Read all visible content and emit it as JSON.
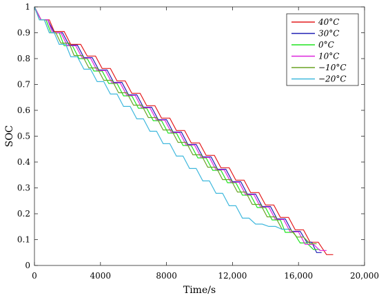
{
  "chart_data": {
    "type": "line",
    "xlabel": "Time/s",
    "ylabel": "SOC",
    "xlim": [
      0,
      20000
    ],
    "ylim": [
      0,
      1
    ],
    "x_ticks": [
      0,
      4000,
      8000,
      12000,
      16000,
      20000
    ],
    "x_tick_labels": [
      "0",
      "4000",
      "8000",
      "12,000",
      "16,000",
      "20,000"
    ],
    "y_ticks": [
      0,
      0.1,
      0.2,
      0.3,
      0.4,
      0.5,
      0.6,
      0.7,
      0.8,
      0.9,
      1
    ],
    "y_tick_labels": [
      "0",
      "0.1",
      "0.2",
      "0.3",
      "0.4",
      "0.5",
      "0.6",
      "0.7",
      "0.8",
      "0.9",
      "1"
    ],
    "grid": false,
    "legend": "top-right",
    "series": [
      {
        "name": "40°C",
        "color": "#e41a1c",
        "points": [
          [
            0,
            1
          ],
          [
            400,
            0.95
          ],
          [
            900,
            0.95
          ],
          [
            1200,
            0.905
          ],
          [
            1800,
            0.905
          ],
          [
            2200,
            0.855
          ],
          [
            2800,
            0.855
          ],
          [
            3200,
            0.81
          ],
          [
            3700,
            0.81
          ],
          [
            4100,
            0.762
          ],
          [
            4600,
            0.762
          ],
          [
            5000,
            0.714
          ],
          [
            5500,
            0.714
          ],
          [
            5900,
            0.666
          ],
          [
            6400,
            0.666
          ],
          [
            6800,
            0.618
          ],
          [
            7300,
            0.618
          ],
          [
            7700,
            0.57
          ],
          [
            8200,
            0.57
          ],
          [
            8600,
            0.522
          ],
          [
            9100,
            0.522
          ],
          [
            9500,
            0.474
          ],
          [
            10000,
            0.474
          ],
          [
            10400,
            0.426
          ],
          [
            10900,
            0.426
          ],
          [
            11300,
            0.378
          ],
          [
            11800,
            0.378
          ],
          [
            12200,
            0.33
          ],
          [
            12700,
            0.33
          ],
          [
            13100,
            0.282
          ],
          [
            13600,
            0.282
          ],
          [
            14000,
            0.234
          ],
          [
            14500,
            0.234
          ],
          [
            14900,
            0.186
          ],
          [
            15400,
            0.186
          ],
          [
            15800,
            0.138
          ],
          [
            16300,
            0.138
          ],
          [
            16700,
            0.09
          ],
          [
            17200,
            0.09
          ],
          [
            17700,
            0.042
          ],
          [
            18100,
            0.042
          ]
        ]
      },
      {
        "name": "30°C",
        "color": "#1f1fb4",
        "points": [
          [
            0,
            1
          ],
          [
            400,
            0.95
          ],
          [
            800,
            0.95
          ],
          [
            1200,
            0.9
          ],
          [
            1700,
            0.9
          ],
          [
            2100,
            0.852
          ],
          [
            2600,
            0.852
          ],
          [
            3000,
            0.804
          ],
          [
            3500,
            0.804
          ],
          [
            3900,
            0.756
          ],
          [
            4400,
            0.756
          ],
          [
            4800,
            0.708
          ],
          [
            5300,
            0.708
          ],
          [
            5700,
            0.66
          ],
          [
            6200,
            0.66
          ],
          [
            6600,
            0.612
          ],
          [
            7100,
            0.612
          ],
          [
            7500,
            0.564
          ],
          [
            8000,
            0.564
          ],
          [
            8400,
            0.516
          ],
          [
            8900,
            0.516
          ],
          [
            9300,
            0.468
          ],
          [
            9800,
            0.468
          ],
          [
            10200,
            0.42
          ],
          [
            10700,
            0.42
          ],
          [
            11100,
            0.372
          ],
          [
            11600,
            0.372
          ],
          [
            12000,
            0.324
          ],
          [
            12500,
            0.324
          ],
          [
            12900,
            0.276
          ],
          [
            13400,
            0.276
          ],
          [
            13800,
            0.228
          ],
          [
            14300,
            0.228
          ],
          [
            14700,
            0.18
          ],
          [
            15200,
            0.18
          ],
          [
            15600,
            0.132
          ],
          [
            16100,
            0.132
          ],
          [
            16500,
            0.09
          ],
          [
            16800,
            0.09
          ],
          [
            17100,
            0.05
          ],
          [
            17400,
            0.05
          ]
        ]
      },
      {
        "name": "0°C",
        "color": "#1ee31e",
        "points": [
          [
            0,
            1
          ],
          [
            400,
            0.95
          ],
          [
            700,
            0.95
          ],
          [
            1000,
            0.9
          ],
          [
            1500,
            0.9
          ],
          [
            1800,
            0.85
          ],
          [
            2300,
            0.85
          ],
          [
            2700,
            0.8
          ],
          [
            3200,
            0.8
          ],
          [
            3600,
            0.752
          ],
          [
            4100,
            0.752
          ],
          [
            4500,
            0.704
          ],
          [
            5000,
            0.704
          ],
          [
            5400,
            0.656
          ],
          [
            5900,
            0.656
          ],
          [
            6300,
            0.608
          ],
          [
            6800,
            0.608
          ],
          [
            7200,
            0.56
          ],
          [
            7700,
            0.56
          ],
          [
            8100,
            0.512
          ],
          [
            8600,
            0.512
          ],
          [
            9000,
            0.464
          ],
          [
            9500,
            0.464
          ],
          [
            9900,
            0.416
          ],
          [
            10400,
            0.416
          ],
          [
            10800,
            0.368
          ],
          [
            11300,
            0.368
          ],
          [
            11700,
            0.32
          ],
          [
            12200,
            0.32
          ],
          [
            12600,
            0.272
          ],
          [
            13100,
            0.272
          ],
          [
            13500,
            0.224
          ],
          [
            14000,
            0.224
          ],
          [
            14400,
            0.176
          ],
          [
            14900,
            0.176
          ],
          [
            15200,
            0.128
          ],
          [
            15700,
            0.128
          ],
          [
            16100,
            0.087
          ],
          [
            16500,
            0.087
          ],
          [
            16900,
            0.062
          ],
          [
            17300,
            0.062
          ]
        ]
      },
      {
        "name": "10°C",
        "color": "#dd22dd",
        "points": [
          [
            0,
            1
          ],
          [
            400,
            0.95
          ],
          [
            800,
            0.95
          ],
          [
            1100,
            0.9
          ],
          [
            1600,
            0.9
          ],
          [
            2000,
            0.85
          ],
          [
            2500,
            0.85
          ],
          [
            2900,
            0.802
          ],
          [
            3400,
            0.802
          ],
          [
            3800,
            0.754
          ],
          [
            4300,
            0.754
          ],
          [
            4700,
            0.706
          ],
          [
            5200,
            0.706
          ],
          [
            5600,
            0.658
          ],
          [
            6100,
            0.658
          ],
          [
            6500,
            0.61
          ],
          [
            7000,
            0.61
          ],
          [
            7400,
            0.562
          ],
          [
            7900,
            0.562
          ],
          [
            8300,
            0.514
          ],
          [
            8800,
            0.514
          ],
          [
            9200,
            0.466
          ],
          [
            9700,
            0.466
          ],
          [
            10100,
            0.418
          ],
          [
            10600,
            0.418
          ],
          [
            11000,
            0.37
          ],
          [
            11500,
            0.37
          ],
          [
            11900,
            0.322
          ],
          [
            12400,
            0.322
          ],
          [
            12800,
            0.274
          ],
          [
            13300,
            0.274
          ],
          [
            13700,
            0.226
          ],
          [
            14200,
            0.226
          ],
          [
            14600,
            0.178
          ],
          [
            15100,
            0.178
          ],
          [
            15500,
            0.13
          ],
          [
            16000,
            0.13
          ],
          [
            16400,
            0.082
          ],
          [
            16900,
            0.082
          ],
          [
            17300,
            0.058
          ],
          [
            17700,
            0.058
          ]
        ]
      },
      {
        "name": "−10°C",
        "color": "#6aa324",
        "points": [
          [
            0,
            1
          ],
          [
            300,
            0.95
          ],
          [
            600,
            0.95
          ],
          [
            900,
            0.9
          ],
          [
            1300,
            0.9
          ],
          [
            1600,
            0.86
          ],
          [
            2100,
            0.86
          ],
          [
            2400,
            0.812
          ],
          [
            2900,
            0.812
          ],
          [
            3300,
            0.764
          ],
          [
            3800,
            0.764
          ],
          [
            4200,
            0.716
          ],
          [
            4700,
            0.716
          ],
          [
            5100,
            0.668
          ],
          [
            5600,
            0.668
          ],
          [
            6000,
            0.62
          ],
          [
            6500,
            0.62
          ],
          [
            6900,
            0.572
          ],
          [
            7400,
            0.572
          ],
          [
            7800,
            0.524
          ],
          [
            8300,
            0.524
          ],
          [
            8700,
            0.476
          ],
          [
            9200,
            0.476
          ],
          [
            9600,
            0.428
          ],
          [
            10100,
            0.428
          ],
          [
            10500,
            0.38
          ],
          [
            11000,
            0.38
          ],
          [
            11400,
            0.332
          ],
          [
            11900,
            0.332
          ],
          [
            12300,
            0.284
          ],
          [
            12800,
            0.284
          ],
          [
            13200,
            0.236
          ],
          [
            13700,
            0.236
          ],
          [
            14100,
            0.188
          ],
          [
            14600,
            0.188
          ],
          [
            15000,
            0.14
          ],
          [
            15500,
            0.14
          ],
          [
            15900,
            0.11
          ],
          [
            16300,
            0.11
          ],
          [
            16700,
            0.084
          ],
          [
            17100,
            0.084
          ]
        ]
      },
      {
        "name": "−20°C",
        "color": "#3fb8dd",
        "points": [
          [
            0,
            1
          ],
          [
            300,
            0.95
          ],
          [
            600,
            0.95
          ],
          [
            900,
            0.9
          ],
          [
            1200,
            0.9
          ],
          [
            1500,
            0.855
          ],
          [
            1900,
            0.855
          ],
          [
            2200,
            0.807
          ],
          [
            2600,
            0.807
          ],
          [
            3000,
            0.759
          ],
          [
            3400,
            0.759
          ],
          [
            3800,
            0.711
          ],
          [
            4200,
            0.711
          ],
          [
            4600,
            0.663
          ],
          [
            5000,
            0.663
          ],
          [
            5400,
            0.615
          ],
          [
            5800,
            0.615
          ],
          [
            6200,
            0.567
          ],
          [
            6600,
            0.567
          ],
          [
            7000,
            0.519
          ],
          [
            7400,
            0.519
          ],
          [
            7800,
            0.471
          ],
          [
            8200,
            0.471
          ],
          [
            8600,
            0.423
          ],
          [
            9000,
            0.423
          ],
          [
            9400,
            0.375
          ],
          [
            9800,
            0.375
          ],
          [
            10200,
            0.327
          ],
          [
            10600,
            0.327
          ],
          [
            11000,
            0.279
          ],
          [
            11400,
            0.279
          ],
          [
            11800,
            0.231
          ],
          [
            12200,
            0.231
          ],
          [
            12600,
            0.183
          ],
          [
            13000,
            0.183
          ],
          [
            13400,
            0.16
          ],
          [
            13800,
            0.16
          ],
          [
            14200,
            0.151
          ],
          [
            14600,
            0.151
          ],
          [
            15000,
            0.14
          ],
          [
            15400,
            0.14
          ]
        ]
      }
    ]
  }
}
